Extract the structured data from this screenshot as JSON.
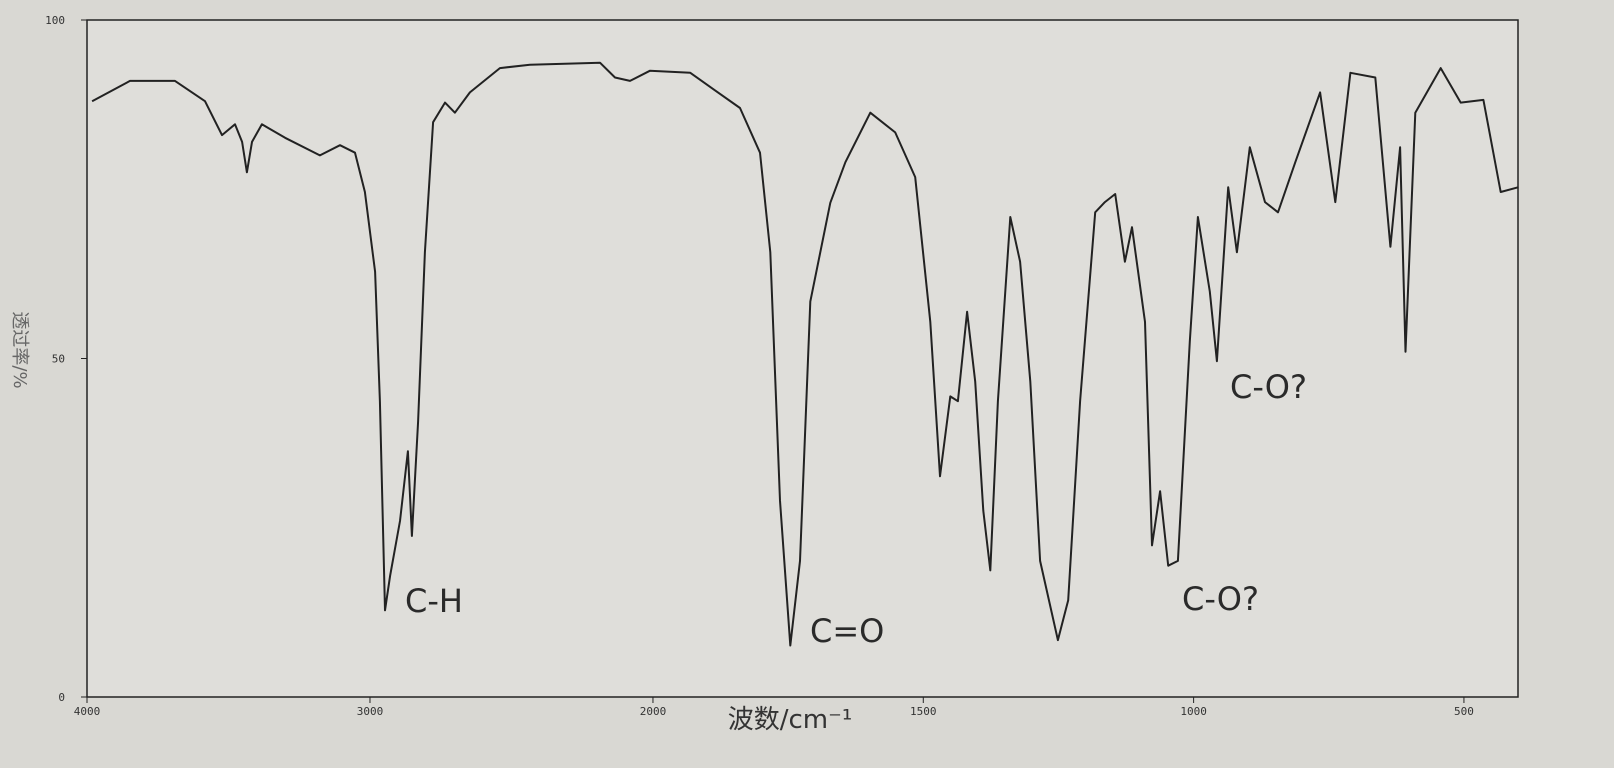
{
  "chart_data": {
    "type": "line",
    "xlabel": "波数/cm⁻¹",
    "ylabel": "透过率/%",
    "xlim": [
      4000,
      400
    ],
    "x_scale_change": 2000,
    "xticks": [
      4000,
      3000,
      2000,
      1500,
      1000,
      500
    ],
    "ylim": [
      0,
      100
    ],
    "yticks": [
      0,
      50,
      100
    ],
    "color": "#222222",
    "annotations": [
      "C-H",
      "C=O",
      "C-O?",
      "C-O?"
    ],
    "x": [
      3982,
      3848,
      3689,
      3583,
      3523,
      3477,
      3452,
      3435,
      3417,
      3382,
      3300,
      3177,
      3106,
      3053,
      3018,
      2982,
      2965,
      2947,
      2929,
      2894,
      2866,
      2852,
      2830,
      2806,
      2777,
      2735,
      2700,
      2647,
      2541,
      2435,
      2187,
      2134,
      2081,
      2011,
      1931,
      1885,
      1839,
      1802,
      1783,
      1765,
      1746,
      1728,
      1709,
      1672,
      1644,
      1598,
      1552,
      1515,
      1487,
      1469,
      1450,
      1436,
      1419,
      1404,
      1389,
      1376,
      1362,
      1339,
      1321,
      1302,
      1284,
      1251,
      1232,
      1210,
      1182,
      1164,
      1145,
      1127,
      1114,
      1090,
      1077,
      1062,
      1047,
      1029,
      1007,
      992,
      970,
      957,
      936,
      920,
      896,
      868,
      844,
      812,
      766,
      738,
      710,
      664,
      636,
      618,
      608,
      590,
      543,
      506,
      464,
      432,
      399
    ],
    "values": [
      88,
      91,
      91,
      88,
      83,
      84.6,
      82,
      77.5,
      82,
      84.6,
      82.6,
      80,
      81.5,
      80.4,
      74.6,
      62.8,
      43.7,
      12.8,
      17.9,
      26,
      36.3,
      23.8,
      40.7,
      65.7,
      84.9,
      87.8,
      86.3,
      89.3,
      92.9,
      93.4,
      93.7,
      91.5,
      91,
      92.5,
      92.2,
      89.6,
      87,
      80.4,
      65.7,
      29,
      7.6,
      20.1,
      58.4,
      73,
      79,
      86.3,
      83.4,
      76.8,
      55.4,
      32.6,
      44.4,
      43.7,
      56.9,
      46.6,
      27.5,
      18.7,
      43.7,
      70.9,
      64.3,
      46.6,
      20.1,
      8.4,
      14.3,
      43.7,
      71.6,
      73.1,
      74.3,
      64.3,
      69.4,
      55.4,
      22.4,
      30.4,
      19.4,
      20.1,
      52.5,
      70.9,
      59.9,
      49.6,
      75.3,
      65.7,
      81.2,
      73.1,
      71.6,
      79,
      89.3,
      73.1,
      92.2,
      91.5,
      66.5,
      81.2,
      51,
      86.3,
      92.9,
      87.8,
      88.2,
      74.6,
      75.3
    ]
  }
}
